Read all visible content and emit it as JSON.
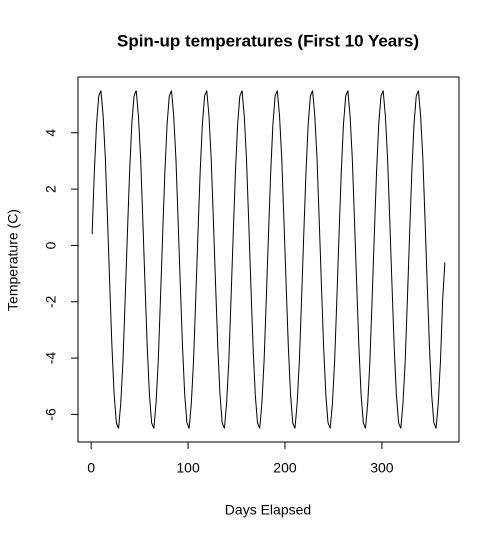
{
  "chart_data": {
    "type": "line",
    "title": "Spin-up temperatures (First 10 Years)",
    "xlabel": "Days Elapsed",
    "ylabel": "Temperature (C)",
    "x": [
      1,
      3.275,
      5.55,
      7.825,
      10.1,
      12.375,
      14.65,
      16.925,
      19.2,
      21.475,
      23.75,
      26.025,
      28.3,
      30.575,
      32.85,
      35.125,
      37.4,
      39.675,
      41.95,
      44.225,
      46.5,
      48.775,
      51.05,
      53.325,
      55.6,
      57.875,
      60.15,
      62.425,
      64.7,
      66.975,
      69.25,
      71.525,
      73.8,
      76.075,
      78.35,
      80.625,
      82.9,
      85.175,
      87.45,
      89.725,
      92,
      94.275,
      96.55,
      98.825,
      101.1,
      103.375,
      105.65,
      107.925,
      110.2,
      112.475,
      114.75,
      117.025,
      119.3,
      121.575,
      123.85,
      126.125,
      128.4,
      130.675,
      132.95,
      135.225,
      137.5,
      139.775,
      142.05,
      144.325,
      146.6,
      148.875,
      151.15,
      153.425,
      155.7,
      157.975,
      160.25,
      162.525,
      164.8,
      167.075,
      169.35,
      171.625,
      173.9,
      176.175,
      178.45,
      180.725,
      183,
      185.275,
      187.55,
      189.825,
      192.1,
      194.375,
      196.65,
      198.925,
      201.2,
      203.475,
      205.75,
      208.025,
      210.3,
      212.575,
      214.85,
      217.125,
      219.4,
      221.675,
      223.95,
      226.225,
      228.5,
      230.775,
      233.05,
      235.325,
      237.6,
      239.875,
      242.15,
      244.425,
      246.7,
      248.975,
      251.25,
      253.525,
      255.8,
      258.075,
      260.35,
      262.625,
      264.9,
      267.175,
      269.45,
      271.725,
      274,
      276.275,
      278.55,
      280.825,
      283.1,
      285.375,
      287.65,
      289.925,
      292.2,
      294.475,
      296.75,
      299.025,
      301.3,
      303.575,
      305.85,
      308.125,
      310.4,
      312.675,
      314.95,
      317.225,
      319.5,
      321.775,
      324.05,
      326.325,
      328.6,
      330.875,
      333.15,
      335.425,
      337.7,
      339.975,
      342.25,
      344.525,
      346.8,
      349.075,
      351.35,
      353.625,
      355.9,
      358.175,
      360.45,
      362.725,
      365
    ],
    "values": [
      0.4,
      2.6,
      4.3,
      5.3,
      5.5,
      4.6,
      3.1,
      0.9,
      -1.4,
      -3.6,
      -5.3,
      -6.3,
      -6.5,
      -5.6,
      -4.1,
      -1.9,
      0.4,
      2.6,
      4.3,
      5.3,
      5.5,
      4.6,
      3.1,
      0.9,
      -1.4,
      -3.6,
      -5.3,
      -6.3,
      -6.5,
      -5.6,
      -4.1,
      -1.9,
      0.4,
      2.6,
      4.3,
      5.3,
      5.5,
      4.6,
      3.1,
      0.9,
      -1.4,
      -3.6,
      -5.3,
      -6.3,
      -6.5,
      -5.6,
      -4.1,
      -1.9,
      0.4,
      2.6,
      4.3,
      5.3,
      5.5,
      4.6,
      3.1,
      0.9,
      -1.4,
      -3.6,
      -5.3,
      -6.3,
      -6.5,
      -5.6,
      -4.1,
      -1.9,
      0.4,
      2.6,
      4.3,
      5.3,
      5.5,
      4.6,
      3.1,
      0.9,
      -1.4,
      -3.6,
      -5.3,
      -6.3,
      -6.5,
      -5.6,
      -4.1,
      -1.9,
      0.4,
      2.6,
      4.3,
      5.3,
      5.5,
      4.6,
      3.1,
      0.9,
      -1.4,
      -3.6,
      -5.3,
      -6.3,
      -6.5,
      -5.6,
      -4.1,
      -1.9,
      0.4,
      2.6,
      4.3,
      5.3,
      5.5,
      4.6,
      3.1,
      0.9,
      -1.4,
      -3.6,
      -5.3,
      -6.3,
      -6.5,
      -5.6,
      -4.1,
      -1.9,
      0.4,
      2.6,
      4.3,
      5.3,
      5.5,
      4.6,
      3.1,
      0.9,
      -1.4,
      -3.6,
      -5.3,
      -6.3,
      -6.5,
      -5.6,
      -4.1,
      -1.9,
      0.4,
      2.6,
      4.3,
      5.3,
      5.5,
      4.6,
      3.1,
      0.9,
      -1.4,
      -3.6,
      -5.3,
      -6.3,
      -6.5,
      -5.6,
      -4.1,
      -1.9,
      0.4,
      2.6,
      4.3,
      5.3,
      5.5,
      4.6,
      3.1,
      0.9,
      -1.4,
      -3.6,
      -5.3,
      -6.3,
      -6.5,
      -5.6,
      -4.1,
      -1.9,
      -0.6
    ],
    "color": "#000000",
    "xlim": [
      -13.56,
      379.56
    ],
    "xticks": [
      0,
      100,
      200,
      300
    ],
    "ylim": [
      -6.98,
      5.98
    ],
    "yticks": [
      -6,
      -4,
      -2,
      0,
      2,
      4
    ]
  }
}
